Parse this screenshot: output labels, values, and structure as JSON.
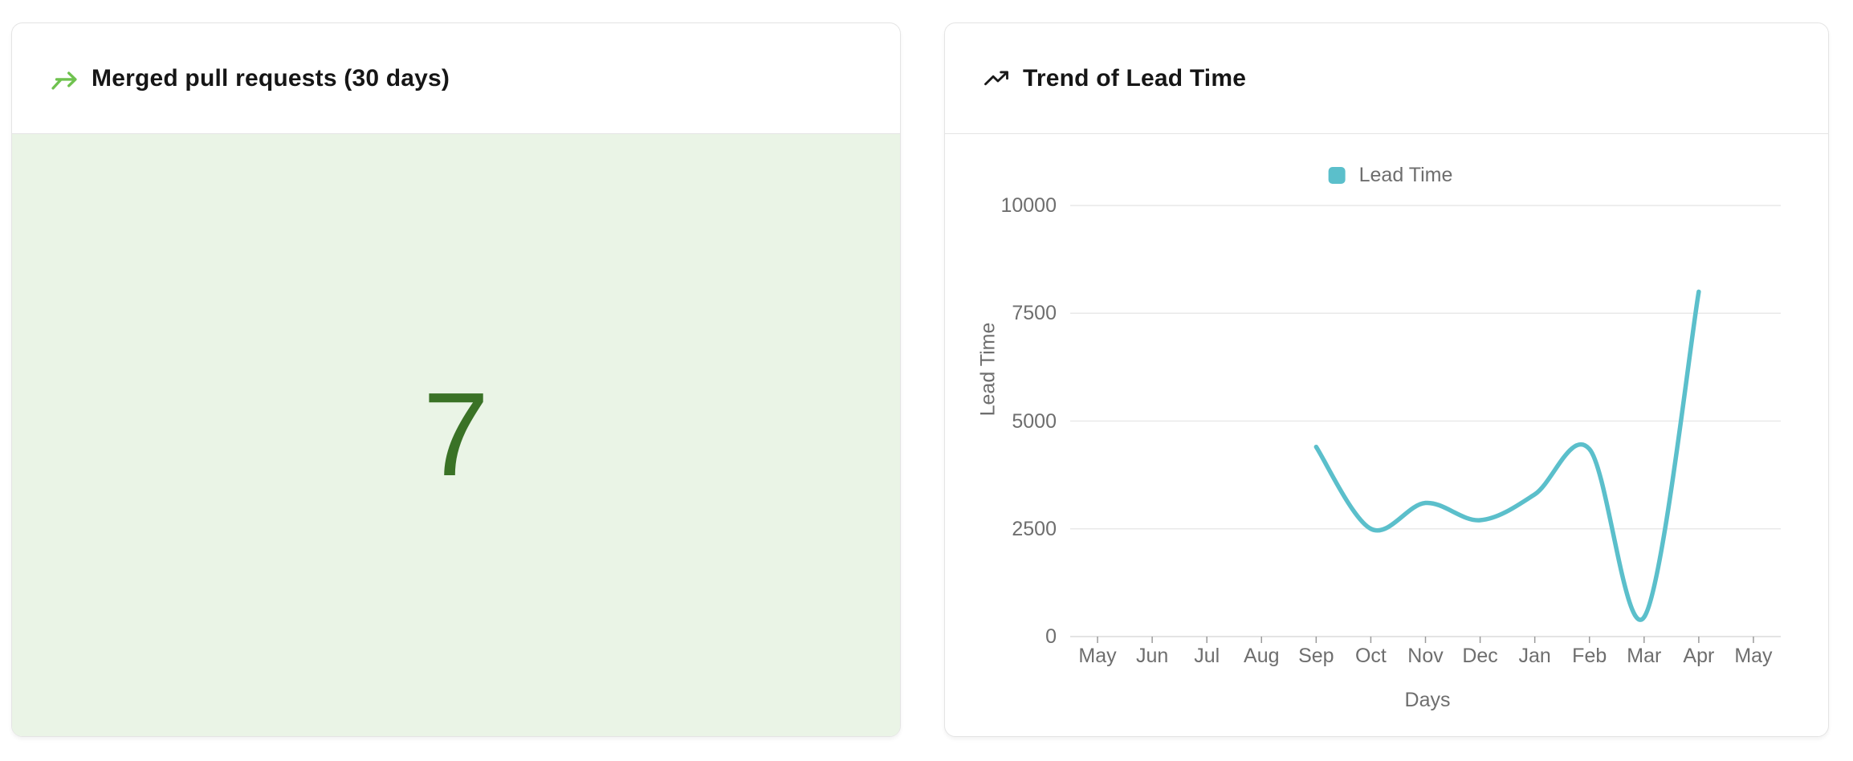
{
  "page": {
    "background": "#FFFFFF"
  },
  "cards": {
    "merged_prs": {
      "title": "Merged pull requests (30 days)",
      "value": "7",
      "icon": "merge-arrow-icon",
      "accent_color": "#6FC24F",
      "value_color": "#3A7226",
      "panel_bg": "#EAF4E6"
    },
    "lead_time_trend": {
      "title": "Trend of Lead Time",
      "icon": "trending-up-icon"
    }
  },
  "chart_data": {
    "type": "line",
    "title": "Trend of Lead Time",
    "categories": [
      "May",
      "Jun",
      "Jul",
      "Aug",
      "Sep",
      "Oct",
      "Nov",
      "Dec",
      "Jan",
      "Feb",
      "Mar",
      "Apr",
      "May"
    ],
    "series": [
      {
        "name": "Lead Time",
        "color": "#5BBFCB",
        "values": [
          null,
          null,
          null,
          null,
          4400,
          2500,
          3100,
          2700,
          3300,
          4350,
          450,
          8000,
          null
        ]
      }
    ],
    "xlabel": "Days",
    "ylabel": "Lead Time",
    "y_ticks": [
      0,
      2500,
      5000,
      7500,
      10000
    ],
    "ylim": [
      0,
      10000
    ],
    "smooth": true,
    "grid": true,
    "legend_position": "top",
    "text_color": "#6E6E6E",
    "grid_color": "#E9E9E9",
    "axis_line_color": "#DCDCDC",
    "tick_color": "#9A9A9A"
  }
}
